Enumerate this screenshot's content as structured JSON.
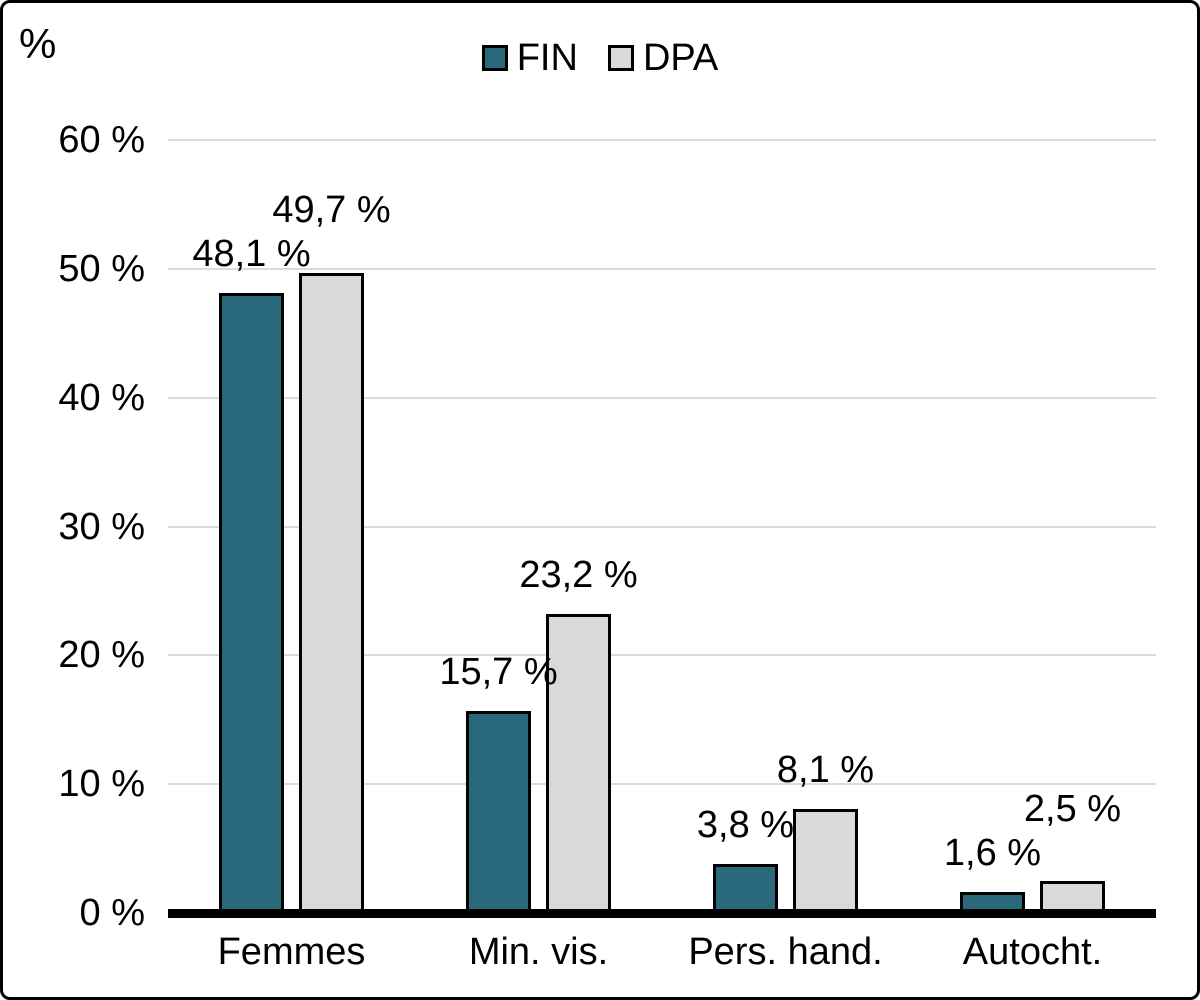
{
  "chart_data": {
    "type": "bar",
    "title": "",
    "ylabel": "%",
    "xlabel": "",
    "categories": [
      "Femmes",
      "Min. vis.",
      "Pers. hand.",
      "Autocht."
    ],
    "series": [
      {
        "name": "FIN",
        "color": "#2A697C",
        "values": [
          48.1,
          15.7,
          3.8,
          1.6
        ],
        "value_labels": [
          "48,1 %",
          "15,7 %",
          "3,8 %",
          "1,6 %"
        ]
      },
      {
        "name": "DPA",
        "color": "#D9D9D9",
        "values": [
          49.7,
          23.2,
          8.1,
          2.5
        ],
        "value_labels": [
          "49,7 %",
          "23,2 %",
          "8,1 %",
          "2,5 %"
        ]
      }
    ],
    "y_axis": {
      "min": 0,
      "max": 60,
      "step": 10,
      "tick_labels": [
        "0 %",
        "10 %",
        "20 %",
        "30 %",
        "40 %",
        "50 %",
        "60 %"
      ]
    },
    "grid": true,
    "legend_position": "top-center",
    "colors": {
      "bar_border": "#000000",
      "gridline": "#DBDBDB",
      "axis_line": "#000000",
      "background": "#FFFFFF",
      "text": "#000000"
    }
  }
}
